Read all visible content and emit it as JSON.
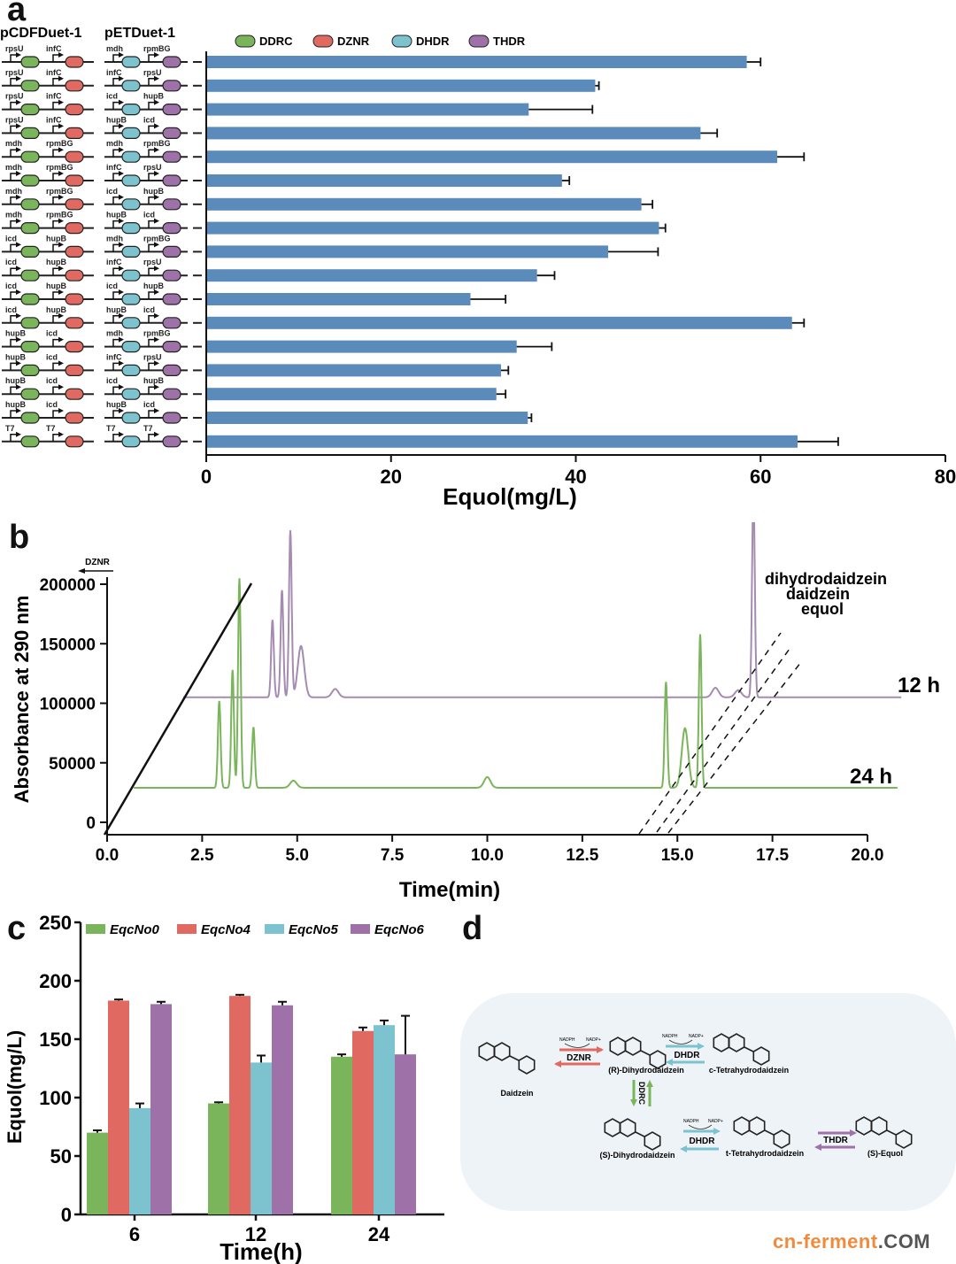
{
  "panels": {
    "a": "a",
    "b": "b",
    "c": "c",
    "d": "d"
  },
  "panel_a": {
    "plasmid_headers": [
      "pCDFDuet-1",
      "pETDuet-1"
    ],
    "legend": [
      {
        "label": "DDRC",
        "color": "#7ab55c"
      },
      {
        "label": "DZNR",
        "color": "#e06a62"
      },
      {
        "label": "DHDR",
        "color": "#7cc3cf"
      },
      {
        "label": "THDR",
        "color": "#9e72a8"
      }
    ],
    "constructs": [
      {
        "cdf": [
          "rpsU",
          "infC"
        ],
        "pet": [
          "mdh",
          "rpmBG"
        ]
      },
      {
        "cdf": [
          "rpsU",
          "infC"
        ],
        "pet": [
          "infC",
          "rpsU"
        ]
      },
      {
        "cdf": [
          "rpsU",
          "infC"
        ],
        "pet": [
          "icd",
          "hupB"
        ]
      },
      {
        "cdf": [
          "rpsU",
          "infC"
        ],
        "pet": [
          "hupB",
          "icd"
        ]
      },
      {
        "cdf": [
          "mdh",
          "rpmBG"
        ],
        "pet": [
          "mdh",
          "rpmBG"
        ]
      },
      {
        "cdf": [
          "mdh",
          "rpmBG"
        ],
        "pet": [
          "infC",
          "rpsU"
        ]
      },
      {
        "cdf": [
          "mdh",
          "rpmBG"
        ],
        "pet": [
          "icd",
          "hupB"
        ]
      },
      {
        "cdf": [
          "mdh",
          "rpmBG"
        ],
        "pet": [
          "hupB",
          "icd"
        ]
      },
      {
        "cdf": [
          "icd",
          "hupB"
        ],
        "pet": [
          "mdh",
          "rpmBG"
        ]
      },
      {
        "cdf": [
          "icd",
          "hupB"
        ],
        "pet": [
          "infC",
          "rpsU"
        ]
      },
      {
        "cdf": [
          "icd",
          "hupB"
        ],
        "pet": [
          "icd",
          "hupB"
        ]
      },
      {
        "cdf": [
          "icd",
          "hupB"
        ],
        "pet": [
          "hupB",
          "icd"
        ]
      },
      {
        "cdf": [
          "hupB",
          "icd"
        ],
        "pet": [
          "mdh",
          "rpmBG"
        ]
      },
      {
        "cdf": [
          "hupB",
          "icd"
        ],
        "pet": [
          "infC",
          "rpsU"
        ]
      },
      {
        "cdf": [
          "hupB",
          "icd"
        ],
        "pet": [
          "icd",
          "hupB"
        ]
      },
      {
        "cdf": [
          "hupB",
          "icd"
        ],
        "pet": [
          "hupB",
          "icd"
        ]
      },
      {
        "cdf": [
          "T7",
          "T7"
        ],
        "pet": [
          "T7",
          "T7"
        ]
      }
    ]
  },
  "chart_data": [
    {
      "id": "a",
      "type": "bar",
      "orientation": "horizontal",
      "title": "",
      "xlabel": "Equol(mg/L)",
      "ylabel": "",
      "xlim": [
        0,
        80
      ],
      "xticks": [
        "0",
        "20",
        "40",
        "60",
        "80"
      ],
      "bar_color": "#5b8bbb",
      "values": [
        58.5,
        42.1,
        34.9,
        53.5,
        61.8,
        38.5,
        47.1,
        49.0,
        43.5,
        35.8,
        28.6,
        63.4,
        33.6,
        31.9,
        31.4,
        34.8,
        64.0
      ],
      "errors": [
        1.5,
        0.4,
        6.9,
        1.8,
        2.9,
        0.8,
        1.2,
        0.7,
        5.4,
        1.9,
        3.8,
        1.3,
        3.8,
        0.8,
        1.0,
        0.4,
        4.4
      ],
      "grid": false
    },
    {
      "id": "b",
      "type": "line",
      "title": "",
      "xlabel": "Time(min)",
      "ylabel": "Absorbance at 290 nm",
      "xlim": [
        0,
        20.0
      ],
      "ylim": [
        0,
        200000
      ],
      "xticks": [
        "0.0",
        "2.5",
        "5.0",
        "7.5",
        "10.0",
        "12.5",
        "15.0",
        "17.5",
        "20.0"
      ],
      "yticks": [
        "0",
        "50000",
        "100000",
        "150000",
        "200000"
      ],
      "axis_note": "DZNR",
      "series": [
        {
          "name": "12 h",
          "color": "#a58bb0",
          "baseline": 105000,
          "peaks": [
            [
              4.35,
              170000
            ],
            [
              4.6,
              195000
            ],
            [
              4.82,
              245000
            ],
            [
              5.1,
              148000
            ],
            [
              6.0,
              112000
            ],
            [
              16.0,
              113000
            ],
            [
              16.6,
              111000
            ],
            [
              17.0,
              282000
            ]
          ]
        },
        {
          "name": "24 h",
          "color": "#7ab55c",
          "baseline": 29000,
          "peaks": [
            [
              2.95,
              102000
            ],
            [
              3.3,
              128000
            ],
            [
              3.48,
              205000
            ],
            [
              3.85,
              80000
            ],
            [
              4.9,
              35000
            ],
            [
              10.0,
              38000
            ],
            [
              14.7,
              118000
            ],
            [
              15.2,
              79000
            ],
            [
              15.6,
              158000
            ]
          ]
        }
      ],
      "annotations": [
        "dihydrodaidzein",
        "daidzein",
        "equol"
      ],
      "grid": false
    },
    {
      "id": "c",
      "type": "bar",
      "title": "",
      "xlabel": "Time(h)",
      "ylabel": "Equol(mg/L)",
      "ylim": [
        0,
        250
      ],
      "yticks": [
        "0",
        "50",
        "100",
        "150",
        "200",
        "250"
      ],
      "categories": [
        "6",
        "12",
        "24"
      ],
      "legend_position": "top",
      "series": [
        {
          "name": "EqcNo0",
          "color": "#7ab55c",
          "values": [
            70,
            95,
            135
          ],
          "errors": [
            2,
            1,
            2
          ]
        },
        {
          "name": "EqcNo4",
          "color": "#e06a62",
          "values": [
            183,
            187,
            157
          ],
          "errors": [
            1,
            1,
            3
          ]
        },
        {
          "name": "EqcNo5",
          "color": "#7cc3cf",
          "values": [
            91,
            130,
            162
          ],
          "errors": [
            4,
            6,
            4
          ]
        },
        {
          "name": "EqcNo6",
          "color": "#9e72a8",
          "values": [
            180,
            179,
            137
          ],
          "errors": [
            2,
            3,
            33
          ]
        }
      ],
      "grid": false
    }
  ],
  "panel_d": {
    "compounds": [
      "Daidzein",
      "(R)-Dihydrodaidzein",
      "c-Tetrahydrodaidzein",
      "(S)-Dihydrodaidzein",
      "t-Tetrahydrodaidzein",
      "(S)-Equol"
    ],
    "enzymes": {
      "dznr": "DZNR",
      "dhdr1": "DHDR",
      "dhdr2": "DHDR",
      "ddrc": "DDRC",
      "thdr": "THDR"
    },
    "cofactors": {
      "nadph": "NADPH",
      "nadp": "NADP+"
    }
  },
  "watermark": {
    "part1": "cn-ferment",
    "part2": ".COM"
  }
}
